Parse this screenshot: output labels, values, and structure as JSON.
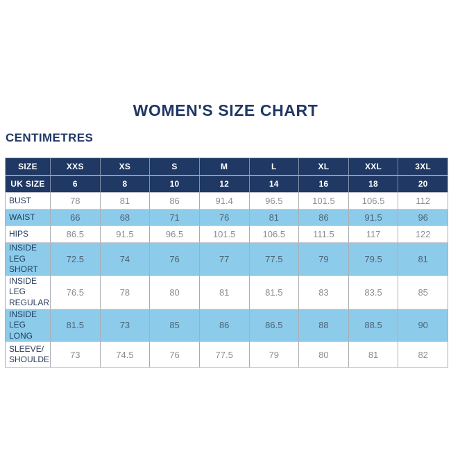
{
  "title": "WOMEN'S SIZE CHART",
  "subtitle": "CENTIMETRES",
  "colors": {
    "navy_header": "#1f3864",
    "light_blue_row": "#8dcbea",
    "white_row": "#ffffff",
    "title_text": "#1f3864",
    "number_text_white_rows": "#8a8c8f",
    "number_text_blue_rows": "#4d6476"
  },
  "chart_data": {
    "type": "table",
    "title": "WOMEN'S SIZE CHART",
    "unit_label": "CENTIMETRES",
    "columns": [
      "SIZE",
      "XXS",
      "XS",
      "S",
      "M",
      "L",
      "XL",
      "XXL",
      "3XL"
    ],
    "uk_size_row": {
      "label": "UK SIZE",
      "values": [
        "6",
        "8",
        "10",
        "12",
        "14",
        "16",
        "18",
        "20"
      ]
    },
    "rows": [
      {
        "label": "BUST",
        "values": [
          "78",
          "81",
          "86",
          "91.4",
          "96.5",
          "101.5",
          "106.5",
          "112"
        ]
      },
      {
        "label": "WAIST",
        "values": [
          "66",
          "68",
          "71",
          "76",
          "81",
          "86",
          "91.5",
          "96"
        ]
      },
      {
        "label": "HIPS",
        "values": [
          "86.5",
          "91.5",
          "96.5",
          "101.5",
          "106.5",
          "111.5",
          "117",
          "122"
        ]
      },
      {
        "label": "INSIDE LEG\nSHORT",
        "values": [
          "72.5",
          "74",
          "76",
          "77",
          "77.5",
          "79",
          "79.5",
          "81"
        ]
      },
      {
        "label": "INSIDE LEG\nREGULAR",
        "values": [
          "76.5",
          "78",
          "80",
          "81",
          "81.5",
          "83",
          "83.5",
          "85"
        ]
      },
      {
        "label": "INSIDE LEG\nLONG",
        "values": [
          "81.5",
          "73",
          "85",
          "86",
          "86.5",
          "88",
          "88.5",
          "90"
        ]
      },
      {
        "label": "SLEEVE/\nSHOULDER",
        "values": [
          "73",
          "74.5",
          "76",
          "77.5",
          "79",
          "80",
          "81",
          "82"
        ]
      }
    ]
  }
}
